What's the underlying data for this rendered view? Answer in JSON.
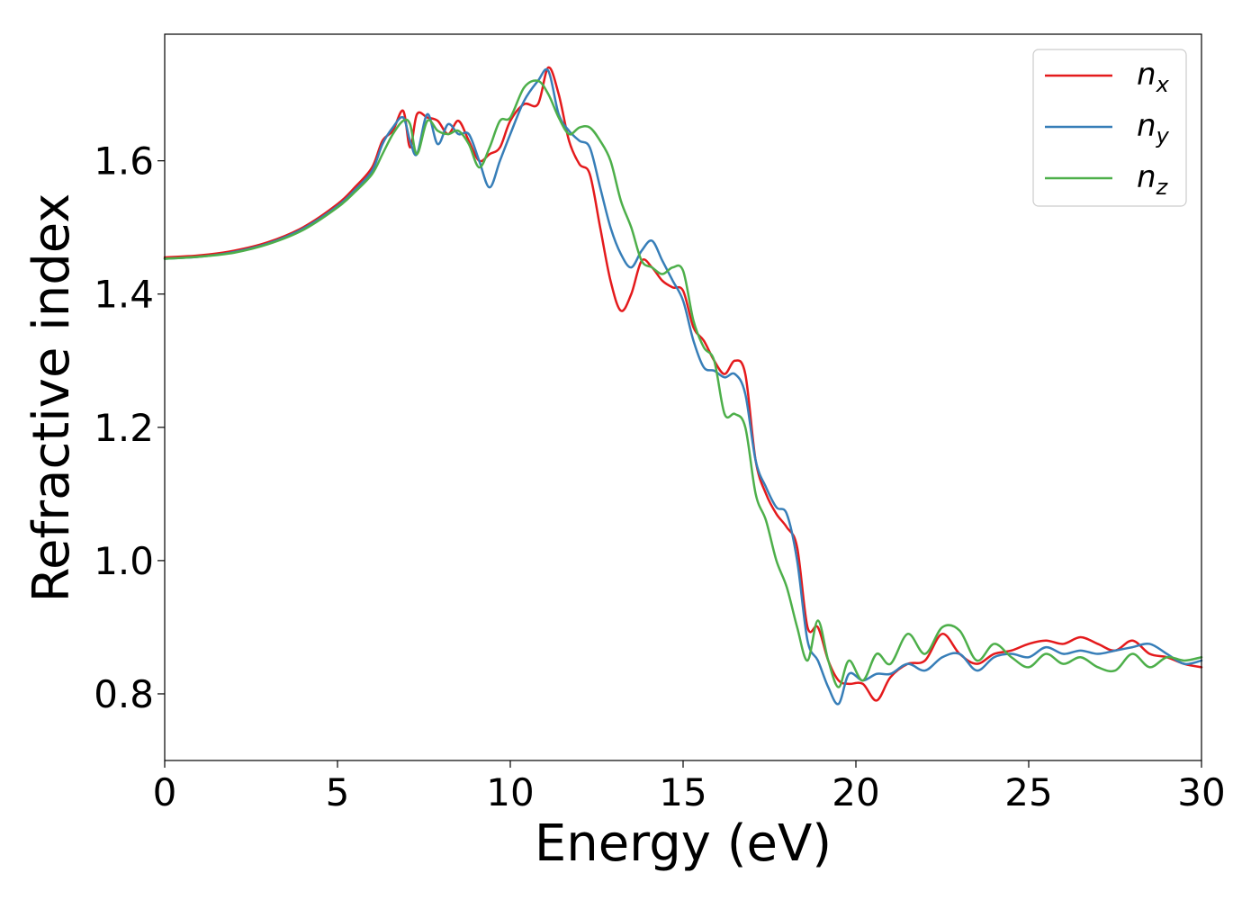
{
  "chart_data": {
    "type": "line",
    "title": "",
    "xlabel": "Energy (eV)",
    "ylabel": "Refractive index",
    "xlim": [
      0,
      30
    ],
    "ylim": [
      0.7,
      1.79
    ],
    "xticks": [
      0,
      5,
      10,
      15,
      20,
      25,
      30
    ],
    "xtick_labels": [
      "0",
      "5",
      "10",
      "15",
      "20",
      "25",
      "30"
    ],
    "yticks": [
      0.8,
      1.0,
      1.2,
      1.4,
      1.6
    ],
    "ytick_labels": [
      "0.8",
      "1.0",
      "1.2",
      "1.4",
      "1.6"
    ],
    "grid": false,
    "legend_position": "top-right",
    "series": [
      {
        "name": "n_x",
        "label_main": "n",
        "label_sub": "x",
        "color": "#e41a1c",
        "x": [
          0,
          1,
          2,
          3,
          4,
          5,
          5.5,
          6,
          6.3,
          6.6,
          6.9,
          7.1,
          7.3,
          7.6,
          7.9,
          8.2,
          8.5,
          8.8,
          9.1,
          9.4,
          9.7,
          10,
          10.4,
          10.8,
          11.1,
          11.4,
          11.7,
          12,
          12.3,
          12.6,
          12.9,
          13.2,
          13.5,
          13.8,
          14.1,
          14.4,
          14.7,
          15,
          15.3,
          15.6,
          15.9,
          16.2,
          16.5,
          16.8,
          17.1,
          17.4,
          17.7,
          18,
          18.3,
          18.6,
          18.9,
          19.2,
          19.5,
          19.8,
          20.2,
          20.6,
          21,
          21.5,
          22,
          22.5,
          23,
          23.5,
          24,
          24.5,
          25,
          25.5,
          26,
          26.5,
          27,
          27.5,
          28,
          28.5,
          29,
          29.5,
          30
        ],
        "y": [
          1.455,
          1.458,
          1.465,
          1.478,
          1.5,
          1.535,
          1.56,
          1.59,
          1.63,
          1.645,
          1.675,
          1.62,
          1.67,
          1.665,
          1.66,
          1.64,
          1.66,
          1.63,
          1.6,
          1.61,
          1.62,
          1.66,
          1.685,
          1.685,
          1.74,
          1.7,
          1.63,
          1.595,
          1.58,
          1.5,
          1.42,
          1.375,
          1.4,
          1.45,
          1.44,
          1.42,
          1.41,
          1.405,
          1.35,
          1.33,
          1.3,
          1.28,
          1.3,
          1.28,
          1.15,
          1.1,
          1.07,
          1.05,
          1.02,
          0.9,
          0.9,
          0.85,
          0.82,
          0.815,
          0.815,
          0.79,
          0.825,
          0.845,
          0.85,
          0.89,
          0.86,
          0.845,
          0.86,
          0.865,
          0.875,
          0.88,
          0.875,
          0.885,
          0.875,
          0.865,
          0.88,
          0.86,
          0.855,
          0.845,
          0.84
        ]
      },
      {
        "name": "n_y",
        "label_main": "n",
        "label_sub": "y",
        "color": "#377eb8",
        "x": [
          0,
          1,
          2,
          3,
          4,
          5,
          5.5,
          6,
          6.3,
          6.6,
          6.9,
          7.1,
          7.3,
          7.6,
          7.9,
          8.2,
          8.5,
          8.8,
          9.1,
          9.4,
          9.7,
          10,
          10.4,
          10.8,
          11.1,
          11.4,
          11.7,
          12,
          12.3,
          12.6,
          12.9,
          13.2,
          13.5,
          13.8,
          14.1,
          14.4,
          14.7,
          15,
          15.3,
          15.6,
          15.9,
          16.2,
          16.5,
          16.8,
          17.1,
          17.4,
          17.7,
          18,
          18.3,
          18.6,
          18.9,
          19.2,
          19.5,
          19.8,
          20.2,
          20.6,
          21,
          21.5,
          22,
          22.5,
          23,
          23.5,
          24,
          24.5,
          25,
          25.5,
          26,
          26.5,
          27,
          27.5,
          28,
          28.5,
          29,
          29.5,
          30
        ],
        "y": [
          1.453,
          1.456,
          1.463,
          1.476,
          1.498,
          1.532,
          1.556,
          1.585,
          1.625,
          1.65,
          1.665,
          1.63,
          1.61,
          1.67,
          1.625,
          1.655,
          1.64,
          1.64,
          1.6,
          1.56,
          1.6,
          1.64,
          1.69,
          1.72,
          1.735,
          1.67,
          1.645,
          1.63,
          1.62,
          1.56,
          1.5,
          1.46,
          1.44,
          1.465,
          1.48,
          1.45,
          1.42,
          1.39,
          1.33,
          1.29,
          1.285,
          1.275,
          1.28,
          1.25,
          1.15,
          1.11,
          1.08,
          1.07,
          1.0,
          0.88,
          0.85,
          0.81,
          0.785,
          0.83,
          0.82,
          0.83,
          0.83,
          0.845,
          0.835,
          0.855,
          0.86,
          0.835,
          0.855,
          0.86,
          0.855,
          0.87,
          0.86,
          0.865,
          0.86,
          0.865,
          0.87,
          0.875,
          0.86,
          0.845,
          0.85
        ]
      },
      {
        "name": "n_z",
        "label_main": "n",
        "label_sub": "z",
        "color": "#4daf4a",
        "x": [
          0,
          1,
          2,
          3,
          4,
          5,
          5.5,
          6,
          6.3,
          6.6,
          6.9,
          7.1,
          7.3,
          7.6,
          7.9,
          8.2,
          8.5,
          8.8,
          9.1,
          9.4,
          9.7,
          10,
          10.4,
          10.8,
          11.1,
          11.4,
          11.7,
          12,
          12.3,
          12.6,
          12.9,
          13.2,
          13.5,
          13.8,
          14.1,
          14.4,
          14.7,
          15,
          15.3,
          15.6,
          15.9,
          16.2,
          16.5,
          16.8,
          17.1,
          17.4,
          17.7,
          18,
          18.3,
          18.6,
          18.9,
          19.2,
          19.5,
          19.8,
          20.2,
          20.6,
          21,
          21.5,
          22,
          22.5,
          23,
          23.5,
          24,
          24.5,
          25,
          25.5,
          26,
          26.5,
          27,
          27.5,
          28,
          28.5,
          29,
          29.5,
          30
        ],
        "y": [
          1.453,
          1.456,
          1.462,
          1.475,
          1.496,
          1.53,
          1.553,
          1.58,
          1.61,
          1.64,
          1.66,
          1.655,
          1.61,
          1.66,
          1.645,
          1.64,
          1.645,
          1.625,
          1.59,
          1.62,
          1.66,
          1.665,
          1.71,
          1.72,
          1.7,
          1.665,
          1.64,
          1.65,
          1.65,
          1.63,
          1.6,
          1.54,
          1.5,
          1.45,
          1.44,
          1.43,
          1.44,
          1.435,
          1.36,
          1.32,
          1.3,
          1.22,
          1.22,
          1.2,
          1.1,
          1.06,
          1.0,
          0.96,
          0.9,
          0.85,
          0.91,
          0.85,
          0.81,
          0.85,
          0.82,
          0.86,
          0.845,
          0.89,
          0.86,
          0.9,
          0.895,
          0.85,
          0.875,
          0.855,
          0.84,
          0.86,
          0.845,
          0.855,
          0.84,
          0.835,
          0.86,
          0.84,
          0.855,
          0.85,
          0.855
        ]
      }
    ]
  }
}
